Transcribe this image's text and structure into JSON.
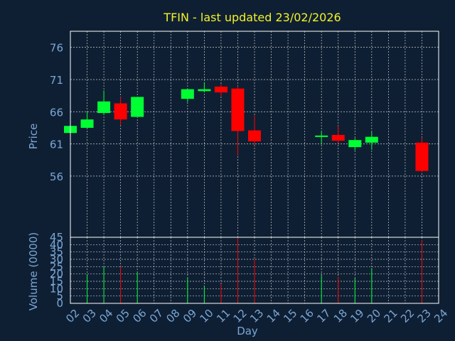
{
  "chart_data": {
    "type": "candlestick",
    "title": "TFIN - last updated 23/02/2026",
    "xlabel": "Day",
    "price_panel": {
      "ylabel": "Price",
      "ylim": [
        46.5,
        78.5
      ],
      "yticks": [
        56,
        61,
        66,
        71,
        76
      ]
    },
    "volume_panel": {
      "ylabel": "Volume (0000)",
      "ylim": [
        0,
        45
      ],
      "yticks": [
        0,
        5,
        10,
        15,
        20,
        25,
        30,
        35,
        40,
        45
      ]
    },
    "x_ticks": [
      "02",
      "03",
      "04",
      "05",
      "06",
      "07",
      "08",
      "09",
      "10",
      "11",
      "12",
      "13",
      "14",
      "15",
      "16",
      "17",
      "18",
      "19",
      "20",
      "21",
      "22",
      "23",
      "24"
    ],
    "grid": true,
    "colors": {
      "background": "#0f1f33",
      "plot_border": "#ffffff",
      "grid": "#c8c8c8",
      "axis_text": "#7aa7d6",
      "title": "#f2f22a",
      "up": "#00ff33",
      "down": "#ff0000"
    },
    "candles": [
      {
        "day": "02",
        "open": 62.7,
        "high": 64.0,
        "low": 62.7,
        "close": 63.8
      },
      {
        "day": "03",
        "open": 63.5,
        "high": 66.0,
        "low": 63.5,
        "close": 64.8
      },
      {
        "day": "04",
        "open": 65.8,
        "high": 69.3,
        "low": 65.5,
        "close": 67.6
      },
      {
        "day": "05",
        "open": 67.3,
        "high": 68.3,
        "low": 63.9,
        "close": 64.8
      },
      {
        "day": "06",
        "open": 65.2,
        "high": 68.3,
        "low": 65.2,
        "close": 68.3
      },
      {
        "day": "09",
        "open": 68.0,
        "high": 69.5,
        "low": 67.5,
        "close": 69.5
      },
      {
        "day": "10",
        "open": 69.2,
        "high": 70.6,
        "low": 69.0,
        "close": 69.5
      },
      {
        "day": "11",
        "open": 69.9,
        "high": 70.3,
        "low": 68.4,
        "close": 69.0
      },
      {
        "day": "12",
        "open": 69.6,
        "high": 70.0,
        "low": 59.2,
        "close": 63.0
      },
      {
        "day": "13",
        "open": 63.1,
        "high": 65.4,
        "low": 60.8,
        "close": 61.4
      },
      {
        "day": "17",
        "open": 62.1,
        "high": 63.0,
        "low": 60.9,
        "close": 62.3
      },
      {
        "day": "18",
        "open": 62.4,
        "high": 63.8,
        "low": 61.1,
        "close": 61.5
      },
      {
        "day": "19",
        "open": 60.5,
        "high": 61.9,
        "low": 60.0,
        "close": 61.6
      },
      {
        "day": "20",
        "open": 61.2,
        "high": 62.9,
        "low": 60.1,
        "close": 62.1
      },
      {
        "day": "23",
        "open": 61.2,
        "high": 62.0,
        "low": 56.6,
        "close": 56.8
      }
    ],
    "volume": [
      {
        "day": "03",
        "value": 19.5,
        "direction": "up"
      },
      {
        "day": "04",
        "value": 25.0,
        "direction": "up"
      },
      {
        "day": "05",
        "value": 25.0,
        "direction": "down"
      },
      {
        "day": "06",
        "value": 21.0,
        "direction": "up"
      },
      {
        "day": "09",
        "value": 17.5,
        "direction": "up"
      },
      {
        "day": "10",
        "value": 12.0,
        "direction": "up"
      },
      {
        "day": "11",
        "value": 13.0,
        "direction": "down"
      },
      {
        "day": "12",
        "value": 45.0,
        "direction": "down"
      },
      {
        "day": "13",
        "value": 30.0,
        "direction": "down"
      },
      {
        "day": "17",
        "value": 19.0,
        "direction": "up"
      },
      {
        "day": "18",
        "value": 18.0,
        "direction": "down"
      },
      {
        "day": "19",
        "value": 17.0,
        "direction": "up"
      },
      {
        "day": "20",
        "value": 24.0,
        "direction": "up"
      },
      {
        "day": "23",
        "value": 43.0,
        "direction": "down"
      }
    ]
  }
}
